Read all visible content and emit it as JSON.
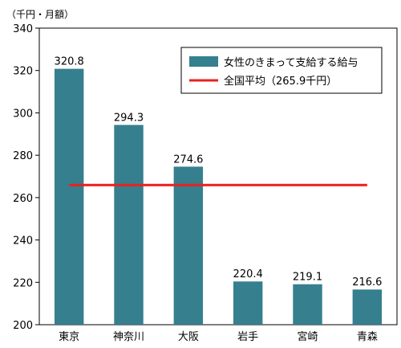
{
  "chart_data": {
    "type": "bar",
    "unit_label": "（千円・月額）",
    "categories": [
      "東京",
      "神奈川",
      "大阪",
      "岩手",
      "宮崎",
      "青森"
    ],
    "series": [
      {
        "name": "女性のきまって支給する給与",
        "values": [
          320.8,
          294.3,
          274.6,
          220.4,
          219.1,
          216.6
        ],
        "color": "#367f8e"
      }
    ],
    "data_labels": [
      "320.8",
      "294.3",
      "274.6",
      "220.4",
      "219.1",
      "216.6"
    ],
    "reference_line": {
      "name": "全国平均（265.9千円）",
      "value": 265.9,
      "color": "#e8211f"
    },
    "ylim": [
      200,
      340
    ],
    "yticks": [
      200,
      220,
      240,
      260,
      280,
      300,
      320,
      340
    ],
    "grid": false,
    "legend_position": "top-right"
  }
}
